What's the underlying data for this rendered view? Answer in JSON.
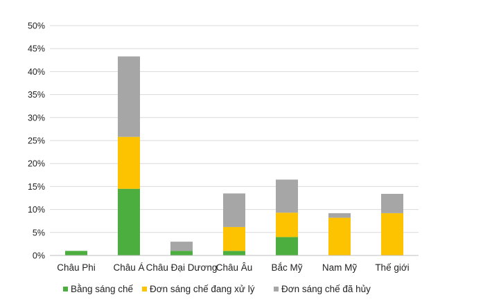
{
  "chart_data": {
    "type": "bar",
    "stacked": true,
    "categories": [
      "Châu Phi",
      "Châu Á",
      "Châu Đại Dương",
      "Châu Âu",
      "Bắc Mỹ",
      "Nam Mỹ",
      "Thế giới"
    ],
    "series": [
      {
        "name": "Bằng sáng chế",
        "color": "#4cae3f",
        "values": [
          1.0,
          14.5,
          1.0,
          1.0,
          4.0,
          0.0,
          0.0
        ]
      },
      {
        "name": "Đơn sáng chế đang xử lý",
        "color": "#fdc300",
        "values": [
          0.0,
          11.3,
          0.0,
          5.2,
          5.3,
          8.2,
          9.2
        ]
      },
      {
        "name": "Đơn sáng chế đã hủy",
        "color": "#a6a6a6",
        "values": [
          0.0,
          17.5,
          2.0,
          7.3,
          7.2,
          1.0,
          4.2
        ]
      }
    ],
    "ylim": [
      0,
      50
    ],
    "yticks": [
      "0%",
      "5%",
      "10%",
      "15%",
      "20%",
      "25%",
      "30%",
      "35%",
      "40%",
      "45%",
      "50%"
    ],
    "grid": true,
    "legend_position": "bottom",
    "title": "",
    "xlabel": "",
    "ylabel": ""
  }
}
